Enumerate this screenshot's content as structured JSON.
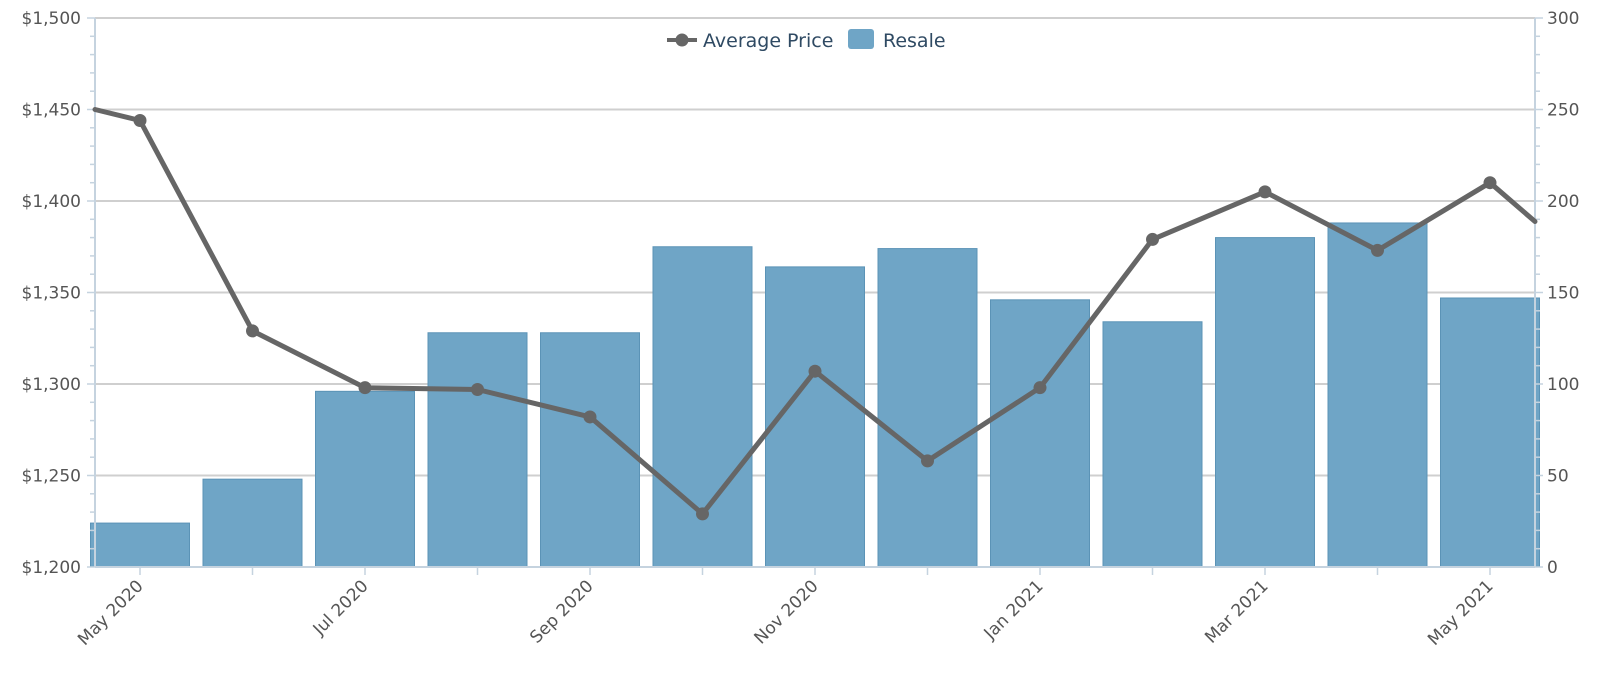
{
  "chart_data": {
    "type": "bar",
    "categories": [
      "May 2020",
      "Jun 2020",
      "Jul 2020",
      "Aug 2020",
      "Sep 2020",
      "Oct 2020",
      "Nov 2020",
      "Dec 2020",
      "Jan 2021",
      "Feb 2021",
      "Mar 2021",
      "Apr 2021",
      "May 2021"
    ],
    "x_tick_labels": [
      "May 2020",
      "Jul 2020",
      "Sep 2020",
      "Nov 2020",
      "Jan 2021",
      "Mar 2021",
      "May 2021"
    ],
    "y_left": {
      "ylim": [
        1200,
        1500
      ],
      "ticks": [
        1200,
        1250,
        1300,
        1350,
        1400,
        1450,
        1500
      ],
      "tick_labels": [
        "$1,200",
        "$1,250",
        "$1,300",
        "$1,350",
        "$1,400",
        "$1,450",
        "$1,500"
      ]
    },
    "y_right": {
      "ylim": [
        0,
        300
      ],
      "ticks": [
        0,
        50,
        100,
        150,
        200,
        250,
        300
      ],
      "tick_labels": [
        "0",
        "50",
        "100",
        "150",
        "200",
        "250",
        "300"
      ]
    },
    "series": [
      {
        "name": "Resale",
        "kind": "bar",
        "axis": "right",
        "color": "#6fa5c6",
        "values": [
          24,
          48,
          96,
          128,
          128,
          175,
          164,
          174,
          146,
          134,
          180,
          188,
          147
        ]
      },
      {
        "name": "Average Price",
        "kind": "line",
        "axis": "left",
        "color": "#666666",
        "values": [
          1444,
          1329,
          1298,
          1297,
          1282,
          1229,
          1307,
          1258,
          1298,
          1379,
          1405,
          1373,
          1410
        ],
        "line_start": 1450,
        "line_end": 1357
      }
    ],
    "grid": true,
    "legend_position": "top-center",
    "xlabel": "",
    "ylabel": ""
  }
}
